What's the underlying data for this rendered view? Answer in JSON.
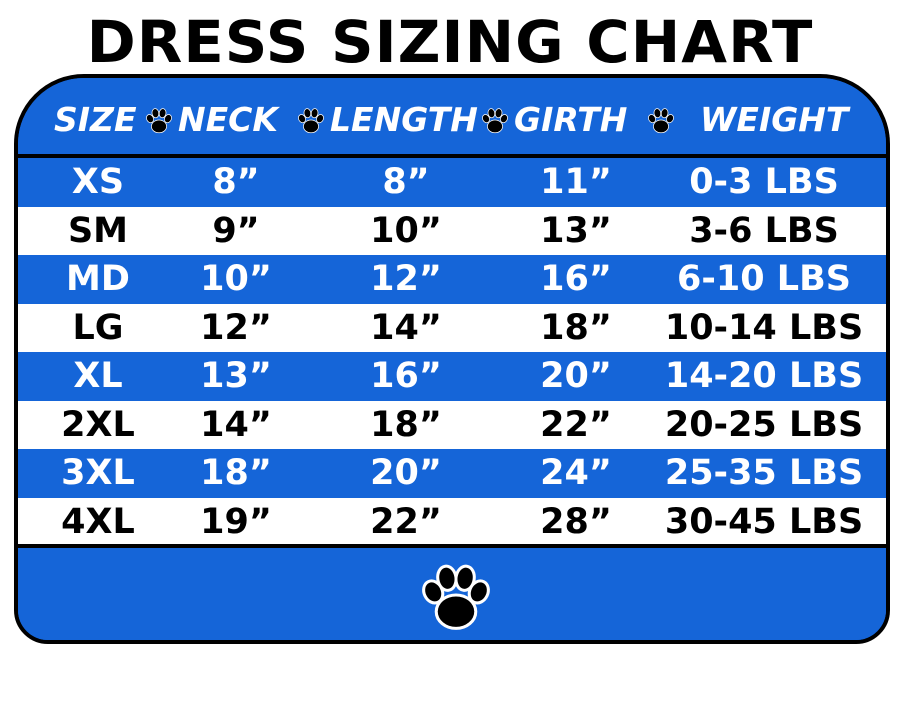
{
  "title": "DRESS SIZING CHART",
  "colors": {
    "blue": "#1565d8",
    "white": "#ffffff",
    "black": "#000000"
  },
  "chart_data": {
    "type": "table",
    "title": "DRESS SIZING CHART",
    "columns": [
      "SIZE",
      "NECK",
      "LENGTH",
      "GIRTH",
      "WEIGHT"
    ],
    "rows": [
      [
        "XS",
        "8”",
        "8”",
        "11”",
        "0-3 LBS"
      ],
      [
        "SM",
        "9”",
        "10”",
        "13”",
        "3-6 LBS"
      ],
      [
        "MD",
        "10”",
        "12”",
        "16”",
        "6-10 LBS"
      ],
      [
        "LG",
        "12”",
        "14”",
        "18”",
        "10-14 LBS"
      ],
      [
        "XL",
        "13”",
        "16”",
        "20”",
        "14-20 LBS"
      ],
      [
        "2XL",
        "14”",
        "18”",
        "22”",
        "20-25 LBS"
      ],
      [
        "3XL",
        "18”",
        "20”",
        "24”",
        "25-35 LBS"
      ],
      [
        "4XL",
        "19”",
        "22”",
        "28”",
        "30-45 LBS"
      ]
    ]
  },
  "icons": {
    "separator": "paw-print-icon",
    "footer": "paw-print-icon"
  }
}
